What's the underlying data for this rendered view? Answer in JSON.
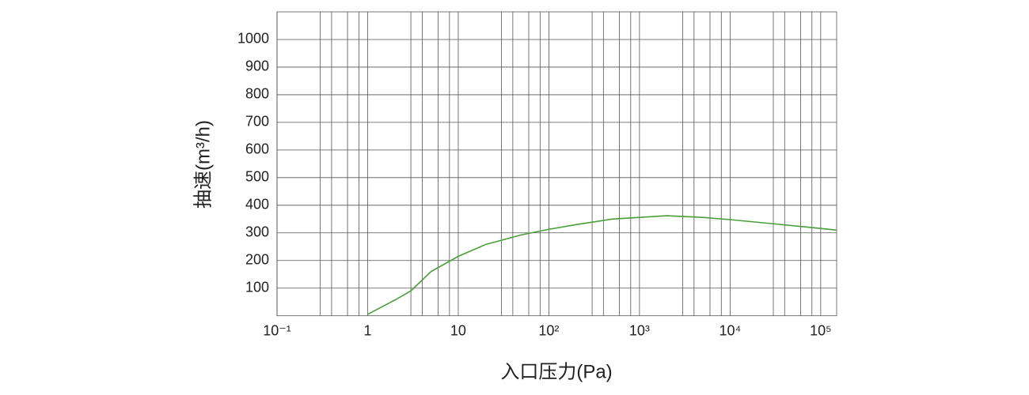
{
  "chart_data": {
    "type": "line",
    "xlabel": "入口压力(Pa)",
    "ylabel": "抽速(m³/h)",
    "xscale": "log",
    "xlim": [
      0.1,
      150000
    ],
    "ylim": [
      0,
      1100
    ],
    "xticks": [
      {
        "value": 0.1,
        "label": "10⁻¹"
      },
      1,
      10,
      {
        "value": 100,
        "label": "10²"
      },
      {
        "value": 1000,
        "label": "10³"
      },
      {
        "value": 10000,
        "label": "10⁴"
      },
      {
        "value": 100000,
        "label": "10⁵"
      }
    ],
    "xminorticks": [
      0.3,
      0.4,
      0.6,
      0.8,
      3,
      4,
      6,
      8,
      30,
      40,
      60,
      80,
      300,
      400,
      600,
      800,
      3000,
      4000,
      6000,
      8000,
      30000,
      40000,
      60000,
      80000
    ],
    "yticks": [
      100,
      200,
      300,
      400,
      500,
      600,
      700,
      800,
      900,
      1000
    ],
    "grid": true,
    "series": [
      {
        "color": "#4a9e3a",
        "x": [
          1,
          2,
          3,
          5,
          10,
          20,
          50,
          100,
          200,
          500,
          1000,
          2000,
          5000,
          10000,
          30000,
          100000,
          150000
        ],
        "values": [
          5,
          57,
          90,
          160,
          215,
          258,
          293,
          313,
          330,
          350,
          356,
          362,
          356,
          348,
          333,
          316,
          310
        ]
      }
    ]
  }
}
